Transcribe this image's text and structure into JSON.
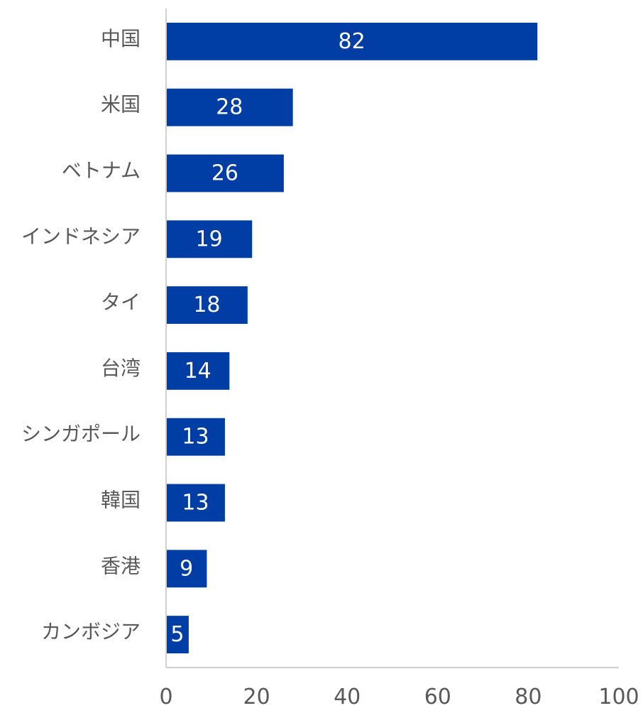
{
  "chart_data": {
    "type": "bar",
    "orientation": "horizontal",
    "categories": [
      "中国",
      "米国",
      "ベトナム",
      "インドネシア",
      "タイ",
      "台湾",
      "シンガポール",
      "韓国",
      "香港",
      "カンボジア"
    ],
    "values": [
      82,
      28,
      26,
      19,
      18,
      14,
      13,
      13,
      9,
      5
    ],
    "xlim": [
      0,
      100
    ],
    "xticks": [
      "0",
      "20",
      "40",
      "60",
      "80",
      "100"
    ],
    "bar_color": "#003DA5",
    "grid": false,
    "data_labels": true
  }
}
